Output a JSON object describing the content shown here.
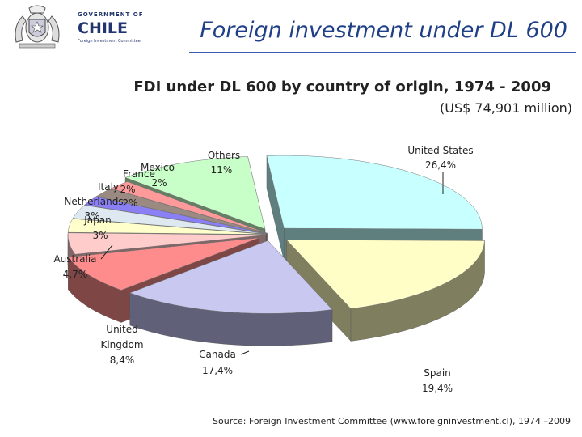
{
  "logo": {
    "line1": "GOVERNMENT OF",
    "line2": "CHILE",
    "line3": "Foreign Investment Committee"
  },
  "slide_title": "Foreign investment under DL 600",
  "source": "Source: Foreign Investment Committee (www.foreigninvestment.cl), 1974 –2009",
  "chart_data": {
    "type": "pie",
    "title": "FDI under DL 600 by country of origin, 1974 - 2009",
    "subtitle": "(US$ 74,901 million)",
    "slices": [
      {
        "label": "United States",
        "value_text": "26,4%",
        "value": 26.4,
        "color": "#c8ffff",
        "side": "#5f7f7f"
      },
      {
        "label": "Spain",
        "value_text": "19,4%",
        "value": 19.4,
        "color": "#fefec6",
        "side": "#7f7f5f"
      },
      {
        "label": "Canada",
        "value_text": "17,4%",
        "value": 17.4,
        "color": "#c8c8f0",
        "side": "#606078"
      },
      {
        "label": "United Kingdom",
        "value_text": "8,4%",
        "value": 8.4,
        "color": "#ff8c8c",
        "side": "#7f4646"
      },
      {
        "label": "Australia",
        "value_text": "4,7%",
        "value": 4.7,
        "color": "#ffcccc",
        "side": "#806666"
      },
      {
        "label": "Japan",
        "value_text": "3%",
        "value": 3,
        "color": "#ffffcc",
        "side": "#808066"
      },
      {
        "label": "Netherlands",
        "value_text": "3%",
        "value": 3,
        "color": "#dde8f0",
        "side": "#6e7478"
      },
      {
        "label": "Italy",
        "value_text": "2%",
        "value": 2,
        "color": "#8a7ff5",
        "side": "#453f7a"
      },
      {
        "label": "France",
        "value_text": "2%",
        "value": 2,
        "color": "#9a8a82",
        "side": "#4d4541"
      },
      {
        "label": "Mexico",
        "value_text": "2%",
        "value": 2,
        "color": "#ff9a9a",
        "side": "#7f4d4d"
      },
      {
        "label": "Others",
        "value_text": "11%",
        "value": 11,
        "color": "#c8ffc8",
        "side": "#647f64"
      }
    ],
    "labels": {
      "us_name": "United States",
      "us_val": "26,4%",
      "spain_name": "Spain",
      "spain_val": "19,4%",
      "canada_name": "Canada",
      "canada_val": "17,4%",
      "uk_1": "United",
      "uk_2": "Kingdom",
      "uk_val": "8,4%",
      "australia_name": "Australia",
      "australia_val": "4,7%",
      "japan_name": "Japan",
      "japan_val": "3%",
      "netherlands_name": "Netherlands",
      "netherlands_val": "3%",
      "italy_name": "Italy",
      "italy_val": "2%",
      "france_name": "France",
      "france_val": "2%",
      "mexico_name": "Mexico",
      "others_name": "Others",
      "others_val": "11%"
    }
  }
}
